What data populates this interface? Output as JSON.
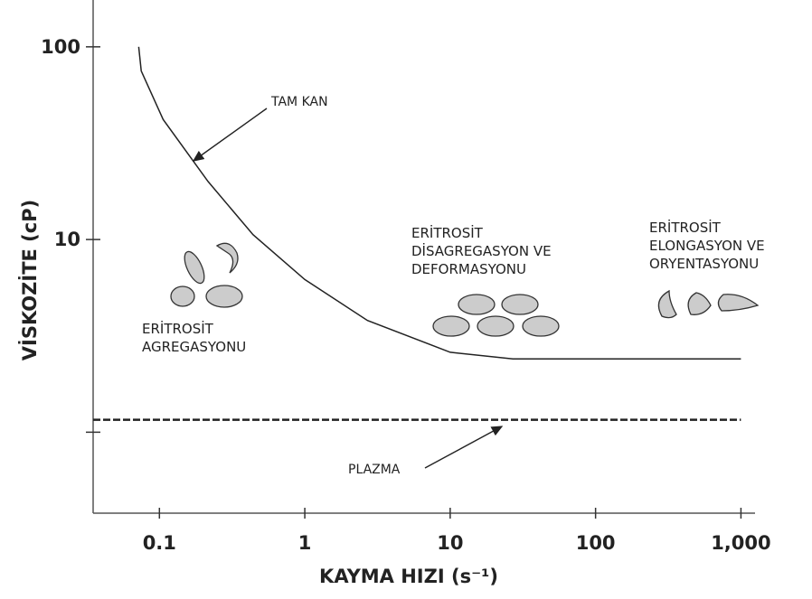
{
  "chart_data": {
    "type": "line",
    "x_label": "KAYMA HIZI (s⁻¹)",
    "y_label": "VİSKOZİTE (cP)",
    "log_x": true,
    "log_y": true,
    "xlim": [
      0.035,
      1250
    ],
    "ylim": [
      0.38,
      175
    ],
    "xticks": [
      0.1,
      1,
      10,
      100,
      {
        "value": 1000,
        "label": "1,000"
      }
    ],
    "yticks": [
      100,
      10
    ],
    "y_unlabeled_ticks": [
      1
    ],
    "series": [
      {
        "name": "TAM KAN",
        "color": "#222222",
        "dashed": false,
        "x": [
          0.072,
          0.075,
          0.106,
          0.216,
          0.44,
          1,
          2.7,
          10,
          27,
          1000
        ],
        "values": [
          100,
          75,
          42,
          20,
          10.6,
          6.2,
          3.8,
          2.6,
          2.4,
          2.4
        ]
      },
      {
        "name": "PLAZMA",
        "color": "#222222",
        "dashed": true,
        "x": [
          0.035,
          1000
        ],
        "values": [
          1.16,
          1.16
        ]
      }
    ],
    "annotations": [
      {
        "lines": [
          "ERİTROSİT",
          "AGREGASYONU"
        ]
      },
      {
        "lines": [
          "ERİTROSİT",
          "DİSAGREGASYON VE",
          "DEFORMASYONU"
        ]
      },
      {
        "lines": [
          "ERİTROSİT",
          "ELONGASYON VE",
          "ORYENTASYONU"
        ]
      }
    ]
  }
}
